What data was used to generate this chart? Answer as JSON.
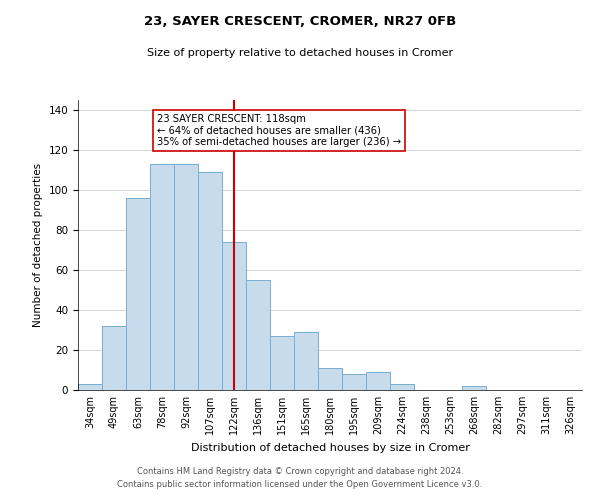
{
  "title1": "23, SAYER CRESCENT, CROMER, NR27 0FB",
  "title2": "Size of property relative to detached houses in Cromer",
  "xlabel": "Distribution of detached houses by size in Cromer",
  "ylabel": "Number of detached properties",
  "categories": [
    "34sqm",
    "49sqm",
    "63sqm",
    "78sqm",
    "92sqm",
    "107sqm",
    "122sqm",
    "136sqm",
    "151sqm",
    "165sqm",
    "180sqm",
    "195sqm",
    "209sqm",
    "224sqm",
    "238sqm",
    "253sqm",
    "268sqm",
    "282sqm",
    "297sqm",
    "311sqm",
    "326sqm"
  ],
  "values": [
    3,
    32,
    96,
    113,
    113,
    109,
    74,
    55,
    27,
    29,
    11,
    8,
    9,
    3,
    0,
    0,
    2,
    0,
    0,
    0,
    0
  ],
  "bar_color": "#c6dcec",
  "bar_edge_color": "#7aaed0",
  "vline_x_index": 6,
  "vline_color": "#cc0000",
  "annotation_text": "23 SAYER CRESCENT: 118sqm\n← 64% of detached houses are smaller (436)\n35% of semi-detached houses are larger (236) →",
  "annotation_box_color": "#ffffff",
  "annotation_box_edge": "#cc0000",
  "ylim": [
    0,
    145
  ],
  "footer1": "Contains HM Land Registry data © Crown copyright and database right 2024.",
  "footer2": "Contains public sector information licensed under the Open Government Licence v3.0.",
  "background_color": "#ffffff",
  "grid_color": "#d0d0d0"
}
